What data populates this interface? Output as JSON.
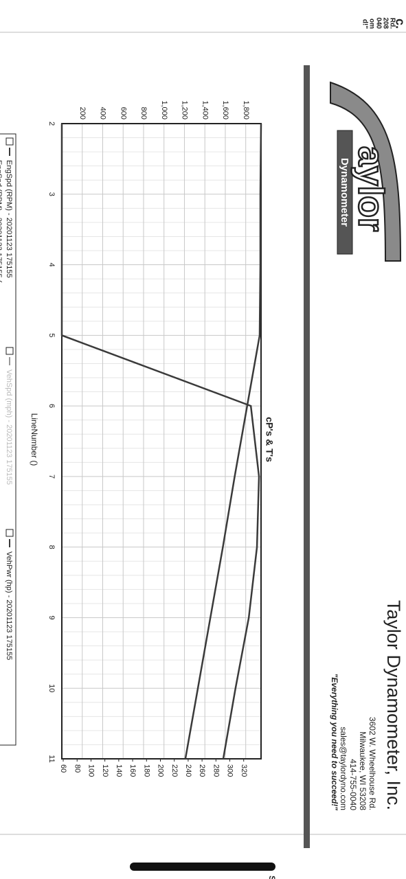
{
  "fragments": {
    "top": [
      "c.",
      "Rd.",
      "208",
      "040",
      "om",
      "d!\""
    ],
    "bottom": "S"
  },
  "header": {
    "title": "Taylor Dynamometer, Inc.",
    "address": [
      "3602 W. Wheelhouse Rd.",
      "Milwaukee, WI 53208",
      "414-755-0040",
      "sales@taylordyno.com"
    ],
    "slogan": "\"Everything you need to succeed!\"",
    "logo": {
      "word": "aylor",
      "sub": "Dynamometer"
    }
  },
  "chart_data": {
    "type": "line",
    "title": "cP's & T's",
    "x_label": "LineNumber ()",
    "x": [
      2,
      3,
      4,
      5,
      6,
      7,
      8,
      9,
      10,
      11
    ],
    "xlim": [
      2,
      11
    ],
    "xticks": [
      2,
      3,
      4,
      5,
      6,
      7,
      8,
      9,
      10,
      11
    ],
    "ylim": [
      0,
      1950
    ],
    "yticks": [
      {
        "value": 200,
        "label": "200"
      },
      {
        "value": 400,
        "label": "400"
      },
      {
        "value": 600,
        "label": "600"
      },
      {
        "value": 800,
        "label": "800"
      },
      {
        "value": 1000,
        "label": "1,000"
      },
      {
        "value": 1200,
        "label": "1,200"
      },
      {
        "value": 1400,
        "label": "1,400"
      },
      {
        "value": 1600,
        "label": "1,600"
      },
      {
        "value": 1800,
        "label": "1,800"
      }
    ],
    "y2lim": [
      58,
      345
    ],
    "y2ticks": [
      60,
      80,
      100,
      120,
      140,
      160,
      180,
      200,
      220,
      240,
      260,
      280,
      300,
      320
    ],
    "grid": true,
    "series": [
      {
        "name": "EngSpd (RPM) - 20201123 175155",
        "color": "#3a3a3a",
        "values": [
          0,
          0,
          0,
          0,
          1850,
          1930,
          1910,
          1830,
          1700,
          1580
        ]
      },
      {
        "name": "VehSpd (mph) - 20201123 175155",
        "color": "#c8c8c8",
        "values": [
          null,
          null,
          null,
          null,
          null,
          null,
          null,
          null,
          null,
          null
        ]
      },
      {
        "name": "VehPwr (hp) - 20201123 175155",
        "color": "#3a3a3a",
        "axis": "y2",
        "values": [
          345,
          344,
          344,
          343,
          325,
          307,
          290,
          272,
          254,
          236
        ]
      }
    ],
    "legend_extra": "EngSpd (RPM) - 20201123 175155 ("
  }
}
